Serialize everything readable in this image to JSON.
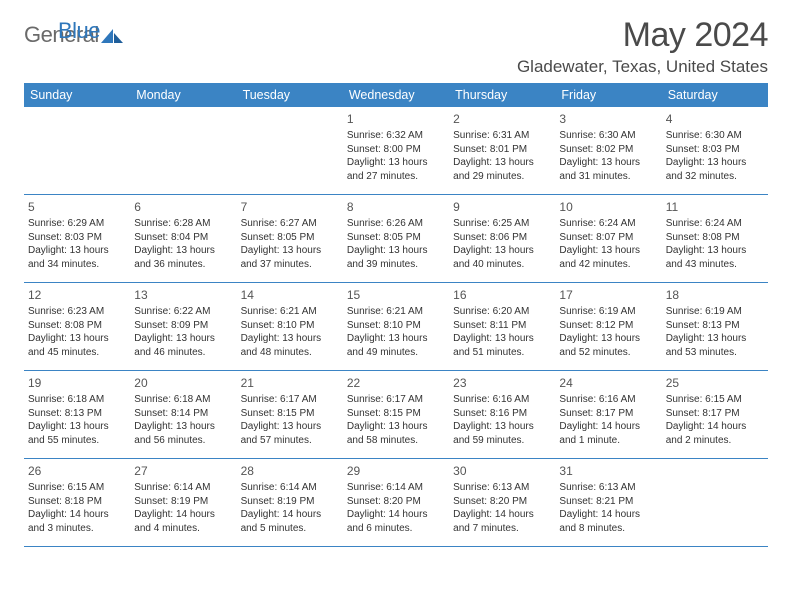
{
  "brand": {
    "word1": "General",
    "word2": "Blue"
  },
  "title": {
    "month": "May 2024",
    "location": "Gladewater, Texas, United States"
  },
  "colors": {
    "header_bg": "#3b84c4",
    "header_fg": "#ffffff",
    "rule": "#3b84c4",
    "text": "#333333",
    "title": "#4a4a4a",
    "logo_gray": "#6a6a6a",
    "logo_blue": "#2f77bb"
  },
  "day_names": [
    "Sunday",
    "Monday",
    "Tuesday",
    "Wednesday",
    "Thursday",
    "Friday",
    "Saturday"
  ],
  "weeks": [
    [
      null,
      null,
      null,
      {
        "n": "1",
        "sr": "Sunrise: 6:32 AM",
        "ss": "Sunset: 8:00 PM",
        "dl1": "Daylight: 13 hours",
        "dl2": "and 27 minutes."
      },
      {
        "n": "2",
        "sr": "Sunrise: 6:31 AM",
        "ss": "Sunset: 8:01 PM",
        "dl1": "Daylight: 13 hours",
        "dl2": "and 29 minutes."
      },
      {
        "n": "3",
        "sr": "Sunrise: 6:30 AM",
        "ss": "Sunset: 8:02 PM",
        "dl1": "Daylight: 13 hours",
        "dl2": "and 31 minutes."
      },
      {
        "n": "4",
        "sr": "Sunrise: 6:30 AM",
        "ss": "Sunset: 8:03 PM",
        "dl1": "Daylight: 13 hours",
        "dl2": "and 32 minutes."
      }
    ],
    [
      {
        "n": "5",
        "sr": "Sunrise: 6:29 AM",
        "ss": "Sunset: 8:03 PM",
        "dl1": "Daylight: 13 hours",
        "dl2": "and 34 minutes."
      },
      {
        "n": "6",
        "sr": "Sunrise: 6:28 AM",
        "ss": "Sunset: 8:04 PM",
        "dl1": "Daylight: 13 hours",
        "dl2": "and 36 minutes."
      },
      {
        "n": "7",
        "sr": "Sunrise: 6:27 AM",
        "ss": "Sunset: 8:05 PM",
        "dl1": "Daylight: 13 hours",
        "dl2": "and 37 minutes."
      },
      {
        "n": "8",
        "sr": "Sunrise: 6:26 AM",
        "ss": "Sunset: 8:05 PM",
        "dl1": "Daylight: 13 hours",
        "dl2": "and 39 minutes."
      },
      {
        "n": "9",
        "sr": "Sunrise: 6:25 AM",
        "ss": "Sunset: 8:06 PM",
        "dl1": "Daylight: 13 hours",
        "dl2": "and 40 minutes."
      },
      {
        "n": "10",
        "sr": "Sunrise: 6:24 AM",
        "ss": "Sunset: 8:07 PM",
        "dl1": "Daylight: 13 hours",
        "dl2": "and 42 minutes."
      },
      {
        "n": "11",
        "sr": "Sunrise: 6:24 AM",
        "ss": "Sunset: 8:08 PM",
        "dl1": "Daylight: 13 hours",
        "dl2": "and 43 minutes."
      }
    ],
    [
      {
        "n": "12",
        "sr": "Sunrise: 6:23 AM",
        "ss": "Sunset: 8:08 PM",
        "dl1": "Daylight: 13 hours",
        "dl2": "and 45 minutes."
      },
      {
        "n": "13",
        "sr": "Sunrise: 6:22 AM",
        "ss": "Sunset: 8:09 PM",
        "dl1": "Daylight: 13 hours",
        "dl2": "and 46 minutes."
      },
      {
        "n": "14",
        "sr": "Sunrise: 6:21 AM",
        "ss": "Sunset: 8:10 PM",
        "dl1": "Daylight: 13 hours",
        "dl2": "and 48 minutes."
      },
      {
        "n": "15",
        "sr": "Sunrise: 6:21 AM",
        "ss": "Sunset: 8:10 PM",
        "dl1": "Daylight: 13 hours",
        "dl2": "and 49 minutes."
      },
      {
        "n": "16",
        "sr": "Sunrise: 6:20 AM",
        "ss": "Sunset: 8:11 PM",
        "dl1": "Daylight: 13 hours",
        "dl2": "and 51 minutes."
      },
      {
        "n": "17",
        "sr": "Sunrise: 6:19 AM",
        "ss": "Sunset: 8:12 PM",
        "dl1": "Daylight: 13 hours",
        "dl2": "and 52 minutes."
      },
      {
        "n": "18",
        "sr": "Sunrise: 6:19 AM",
        "ss": "Sunset: 8:13 PM",
        "dl1": "Daylight: 13 hours",
        "dl2": "and 53 minutes."
      }
    ],
    [
      {
        "n": "19",
        "sr": "Sunrise: 6:18 AM",
        "ss": "Sunset: 8:13 PM",
        "dl1": "Daylight: 13 hours",
        "dl2": "and 55 minutes."
      },
      {
        "n": "20",
        "sr": "Sunrise: 6:18 AM",
        "ss": "Sunset: 8:14 PM",
        "dl1": "Daylight: 13 hours",
        "dl2": "and 56 minutes."
      },
      {
        "n": "21",
        "sr": "Sunrise: 6:17 AM",
        "ss": "Sunset: 8:15 PM",
        "dl1": "Daylight: 13 hours",
        "dl2": "and 57 minutes."
      },
      {
        "n": "22",
        "sr": "Sunrise: 6:17 AM",
        "ss": "Sunset: 8:15 PM",
        "dl1": "Daylight: 13 hours",
        "dl2": "and 58 minutes."
      },
      {
        "n": "23",
        "sr": "Sunrise: 6:16 AM",
        "ss": "Sunset: 8:16 PM",
        "dl1": "Daylight: 13 hours",
        "dl2": "and 59 minutes."
      },
      {
        "n": "24",
        "sr": "Sunrise: 6:16 AM",
        "ss": "Sunset: 8:17 PM",
        "dl1": "Daylight: 14 hours",
        "dl2": "and 1 minute."
      },
      {
        "n": "25",
        "sr": "Sunrise: 6:15 AM",
        "ss": "Sunset: 8:17 PM",
        "dl1": "Daylight: 14 hours",
        "dl2": "and 2 minutes."
      }
    ],
    [
      {
        "n": "26",
        "sr": "Sunrise: 6:15 AM",
        "ss": "Sunset: 8:18 PM",
        "dl1": "Daylight: 14 hours",
        "dl2": "and 3 minutes."
      },
      {
        "n": "27",
        "sr": "Sunrise: 6:14 AM",
        "ss": "Sunset: 8:19 PM",
        "dl1": "Daylight: 14 hours",
        "dl2": "and 4 minutes."
      },
      {
        "n": "28",
        "sr": "Sunrise: 6:14 AM",
        "ss": "Sunset: 8:19 PM",
        "dl1": "Daylight: 14 hours",
        "dl2": "and 5 minutes."
      },
      {
        "n": "29",
        "sr": "Sunrise: 6:14 AM",
        "ss": "Sunset: 8:20 PM",
        "dl1": "Daylight: 14 hours",
        "dl2": "and 6 minutes."
      },
      {
        "n": "30",
        "sr": "Sunrise: 6:13 AM",
        "ss": "Sunset: 8:20 PM",
        "dl1": "Daylight: 14 hours",
        "dl2": "and 7 minutes."
      },
      {
        "n": "31",
        "sr": "Sunrise: 6:13 AM",
        "ss": "Sunset: 8:21 PM",
        "dl1": "Daylight: 14 hours",
        "dl2": "and 8 minutes."
      },
      null
    ]
  ]
}
